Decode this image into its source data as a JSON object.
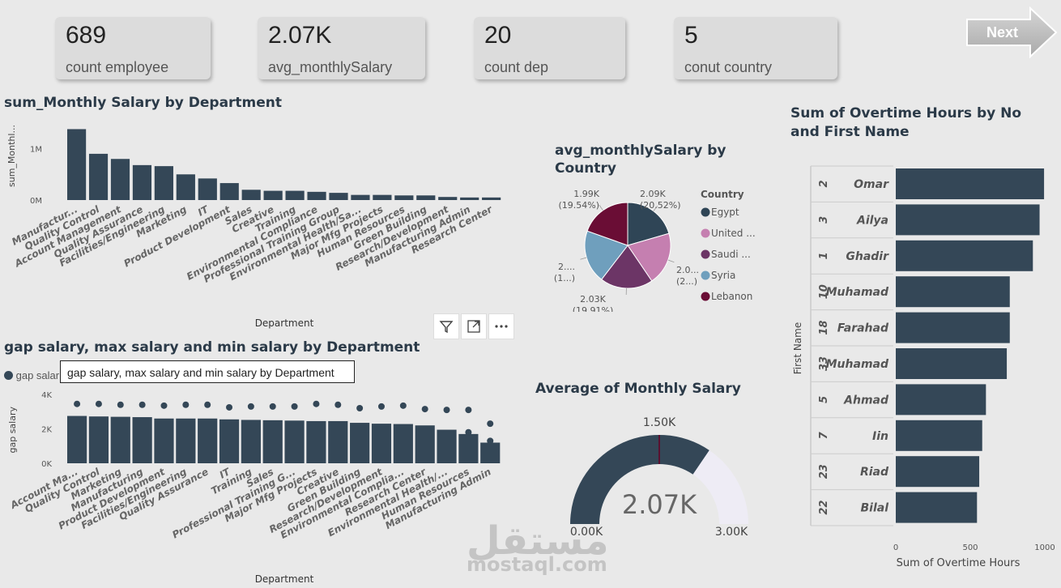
{
  "kpis": [
    {
      "value": "689",
      "label": "count employee"
    },
    {
      "value": "2.07K",
      "label": "avg_monthlySalary"
    },
    {
      "value": "20",
      "label": "count dep"
    },
    {
      "value": "5",
      "label": "conut country"
    }
  ],
  "next_button": {
    "label": "Next"
  },
  "salary_by_dept": {
    "title": "sum_Monthly Salary by Department",
    "ylabel": "sum_Monthl...",
    "xlabel": "Department",
    "yticks": [
      "1M",
      "0M"
    ],
    "chart_data": {
      "type": "bar",
      "categories": [
        "Manufactur...",
        "Quality Control",
        "Account Management",
        "Quality Assurance",
        "Facilities/Engineering",
        "Marketing",
        "IT",
        "Product Development",
        "Sales",
        "Creative",
        "Training",
        "Environmental Compliance",
        "Professional Training Group",
        "Environmental Health/Sa...",
        "Major Mfg Projects",
        "Human Resources",
        "Green Building",
        "Research/Development",
        "Manufacturing Admin",
        "Research Center"
      ],
      "values": [
        1.38,
        0.9,
        0.8,
        0.68,
        0.66,
        0.5,
        0.42,
        0.33,
        0.2,
        0.18,
        0.18,
        0.16,
        0.14,
        0.1,
        0.1,
        0.09,
        0.09,
        0.06,
        0.05,
        0.05
      ],
      "ylim": [
        0,
        1.45
      ],
      "unit": "M"
    }
  },
  "avg_by_country": {
    "title": "avg_monthlySalary by Country",
    "legend_title": "Country",
    "chart_data": {
      "type": "pie",
      "categories": [
        "Egypt",
        "United ...",
        "Saudi ...",
        "Syria",
        "Lebanon"
      ],
      "values": [
        20.52,
        20.0,
        19.91,
        20.03,
        19.54
      ],
      "colors": [
        "#2f4556",
        "#c57fb0",
        "#6c3566",
        "#6f9fbd",
        "#6a0d35"
      ]
    },
    "slice_labels": [
      {
        "line1": "2.09K",
        "line2": "(20.52%)"
      },
      {
        "line1": "2.0...",
        "line2": "(2...)"
      },
      {
        "line1": "2.03K",
        "line2": "(19.91%)"
      },
      {
        "line1": "2....",
        "line2": "(1...)"
      },
      {
        "line1": "1.99K",
        "line2": "(19.54%)"
      }
    ]
  },
  "gap_salary": {
    "title": "gap salary, max salary and min salary by Department",
    "legend_label": "gap salar",
    "tooltip": "gap salary, max salary and min salary by Department",
    "ylabel": "gap salary",
    "xlabel": "Department",
    "yticks": [
      "4K",
      "2K",
      "0K"
    ],
    "chart_data": {
      "type": "bar",
      "categories": [
        "Account Ma...",
        "Quality Control",
        "Marketing",
        "Manufacturing",
        "Product Development",
        "Facilities/Engineering",
        "Quality Assurance",
        "IT",
        "Training",
        "Sales",
        "Professional Training G...",
        "Major Mfg Projects",
        "Creative",
        "Green Building",
        "Research/Development",
        "Environmental Complia...",
        "Research Center",
        "Environmental Health/...",
        "Human Resources",
        "Manufacturing Admin"
      ],
      "values": [
        2.75,
        2.72,
        2.7,
        2.68,
        2.6,
        2.6,
        2.6,
        2.55,
        2.52,
        2.5,
        2.48,
        2.45,
        2.45,
        2.35,
        2.3,
        2.28,
        2.2,
        1.95,
        1.7,
        1.2
      ],
      "extra_values": [
        3.45,
        3.45,
        3.4,
        3.4,
        3.35,
        3.4,
        3.4,
        3.25,
        3.3,
        3.3,
        3.3,
        3.45,
        3.4,
        3.2,
        3.3,
        3.35,
        3.15,
        3.1,
        3.1,
        2.3
      ],
      "extra_values_2": [
        null,
        null,
        null,
        null,
        null,
        null,
        null,
        null,
        null,
        null,
        null,
        null,
        null,
        null,
        null,
        null,
        null,
        null,
        1.8,
        1.3
      ],
      "ylim": [
        0,
        4
      ],
      "unit": "K"
    }
  },
  "gauge": {
    "title": "Average of Monthly Salary",
    "value_label": "2.07K",
    "target_label": "1.50K",
    "min_label": "0.00K",
    "max_label": "3.00K",
    "chart_data": {
      "type": "gauge",
      "value": 2.07,
      "target": 1.5,
      "min": 0,
      "max": 3
    }
  },
  "overtime": {
    "title_line1": "Sum of Overtime Hours by No",
    "title_line2": "and First Name",
    "ylabel": "First Name",
    "xlabel": "Sum of Overtime Hours",
    "xticks": [
      "0",
      "500",
      "1000"
    ],
    "chart_data": {
      "type": "bar",
      "categories": [
        {
          "no": "2",
          "name": "Omar"
        },
        {
          "no": "3",
          "name": "Ailya"
        },
        {
          "no": "1",
          "name": "Ghadir"
        },
        {
          "no": "10",
          "name": "Muhamad"
        },
        {
          "no": "18",
          "name": "Farahad"
        },
        {
          "no": "33",
          "name": "Muhamad"
        },
        {
          "no": "5",
          "name": "Ahmad"
        },
        {
          "no": "7",
          "name": "Iin"
        },
        {
          "no": "23",
          "name": "Riad"
        },
        {
          "no": "22",
          "name": "Bilal"
        }
      ],
      "values": [
        995,
        965,
        920,
        765,
        765,
        745,
        605,
        580,
        560,
        545
      ],
      "xlim": [
        0,
        1000
      ]
    }
  },
  "watermark": {
    "line1": "مستقل",
    "line2": "mostaql.com"
  },
  "colors": {
    "bar": "#344757",
    "gauge_rest": "#eeecf5",
    "background": "#e9e9e9"
  }
}
